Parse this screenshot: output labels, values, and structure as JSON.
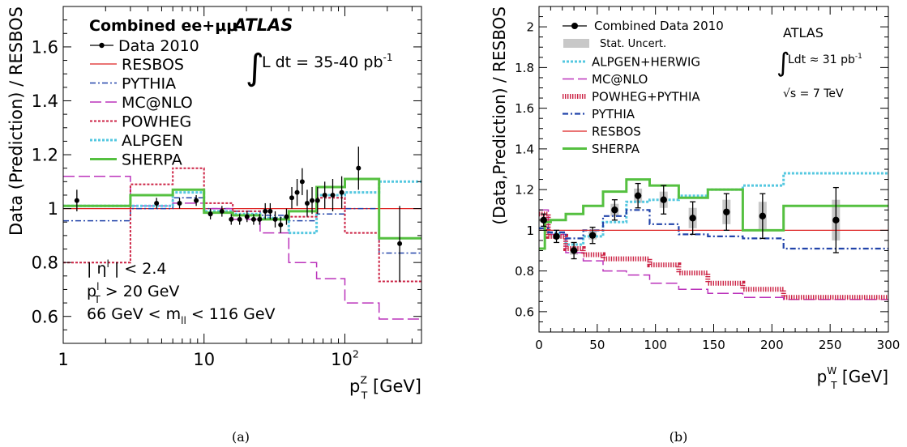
{
  "chart_data": [
    {
      "type": "line",
      "panel_caption": "(a)",
      "xscale": "log",
      "xlim": [
        1,
        350
      ],
      "ylim": [
        0.5,
        1.75
      ],
      "xticks": [
        1,
        10,
        100
      ],
      "xtick_labels": [
        "1",
        "10",
        "10²"
      ],
      "yticks": [
        0.6,
        0.8,
        1.0,
        1.2,
        1.4,
        1.6
      ],
      "ytick_labels": [
        "0.6",
        "0.8",
        "1",
        "1.2",
        "1.4",
        "1.6"
      ],
      "ylabel": "Data (Prediction) / RESBOS",
      "xlabel": "p_T^Z [GeV]",
      "xlabel_main": "p",
      "xlabel_sub": "T",
      "xlabel_sup": "Z",
      "xlabel_unit": " [GeV]",
      "legend_header": "Combined ee+μμ",
      "atlas_label": "ATLAS",
      "lumi": "L dt = 35-40 pb",
      "lumi_sup": "-1",
      "cuts": [
        {
          "main": "| η",
          "sup": "l",
          "sub": "",
          "rest": " | < 2.4"
        },
        {
          "main": "p",
          "sup": "l",
          "sub": "T",
          "rest": " > 20 GeV"
        },
        {
          "main": "66 GeV < m",
          "sup": "",
          "sub": "ll",
          "rest": " < 116 GeV"
        }
      ],
      "legend_placement": "top-left",
      "data": {
        "name": "Data 2010",
        "x": [
          1.25,
          4.6,
          6.7,
          8.8,
          11.1,
          13.4,
          15.6,
          17.9,
          20.2,
          22.5,
          24.8,
          27.2,
          29.5,
          32.0,
          35.0,
          38.5,
          42.0,
          45.8,
          49.8,
          54.0,
          58.5,
          64.0,
          72.0,
          82.0,
          95.0,
          125.0,
          245.0
        ],
        "y": [
          1.03,
          1.02,
          1.02,
          1.03,
          0.98,
          0.99,
          0.96,
          0.96,
          0.97,
          0.96,
          0.96,
          0.99,
          0.99,
          0.96,
          0.94,
          0.97,
          1.04,
          1.06,
          1.1,
          1.02,
          1.03,
          1.03,
          1.05,
          1.05,
          1.06,
          1.15,
          0.87
        ],
        "err": [
          0.04,
          0.02,
          0.02,
          0.02,
          0.02,
          0.02,
          0.02,
          0.02,
          0.02,
          0.02,
          0.02,
          0.03,
          0.03,
          0.03,
          0.03,
          0.03,
          0.04,
          0.05,
          0.05,
          0.05,
          0.05,
          0.05,
          0.05,
          0.06,
          0.06,
          0.08,
          0.14
        ]
      },
      "series": [
        {
          "name": "RESBOS",
          "color": "#dd2222",
          "style": "solid",
          "width": 1.3,
          "edges": [
            1,
            350
          ],
          "values": [
            1.0
          ]
        },
        {
          "name": "PYTHIA",
          "color": "#2244aa",
          "style": "dashdot",
          "width": 1.5,
          "edges": [
            1,
            3,
            6,
            10,
            16,
            25,
            40,
            63,
            100,
            175,
            350
          ],
          "values": [
            0.955,
            1.0,
            1.04,
            1.0,
            0.99,
            0.975,
            0.955,
            0.98,
            1.0,
            0.835
          ]
        },
        {
          "name": "MC@NLO",
          "color": "#bb33bb",
          "style": "longdash",
          "width": 1.5,
          "edges": [
            1,
            3,
            6,
            10,
            16,
            25,
            40,
            63,
            100,
            175,
            350
          ],
          "values": [
            1.12,
            1.01,
            1.02,
            1.0,
            0.96,
            0.91,
            0.8,
            0.74,
            0.65,
            0.59
          ]
        },
        {
          "name": "POWHEG",
          "color": "#cc2244",
          "style": "dotted",
          "width": 2,
          "edges": [
            1,
            3,
            6,
            10,
            16,
            25,
            40,
            63,
            100,
            175,
            350
          ],
          "values": [
            0.8,
            1.09,
            1.15,
            1.02,
            0.99,
            0.965,
            0.97,
            1.04,
            0.91,
            0.73
          ]
        },
        {
          "name": "ALPGEN",
          "color": "#55c8e0",
          "style": "dotted",
          "width": 3,
          "edges": [
            1,
            3,
            6,
            10,
            16,
            25,
            40,
            63,
            100,
            175,
            350
          ],
          "values": [
            1.01,
            1.01,
            1.06,
            0.99,
            0.98,
            0.965,
            0.91,
            1.05,
            1.06,
            1.1
          ]
        },
        {
          "name": "SHERPA",
          "color": "#55c040",
          "style": "solid",
          "width": 3,
          "edges": [
            1,
            3,
            6,
            10,
            16,
            25,
            40,
            63,
            100,
            175,
            350
          ],
          "values": [
            1.01,
            1.05,
            1.07,
            0.985,
            0.975,
            0.96,
            0.99,
            1.08,
            1.11,
            0.89
          ]
        }
      ]
    },
    {
      "type": "line",
      "panel_caption": "(b)",
      "xscale": "linear",
      "xlim": [
        0,
        300
      ],
      "ylim": [
        0.5,
        2.1
      ],
      "xticks": [
        0,
        50,
        100,
        150,
        200,
        250,
        300
      ],
      "xtick_labels": [
        "0",
        "50",
        "100",
        "150",
        "200",
        "250",
        "300"
      ],
      "yticks": [
        0.6,
        0.8,
        1.0,
        1.2,
        1.4,
        1.6,
        1.8,
        2.0
      ],
      "ytick_labels": [
        "0.6",
        "0.8",
        "1",
        "1.2",
        "1.4",
        "1.6",
        "1.8",
        "2"
      ],
      "ylabel": "(Data,Prediction) / RESBOS",
      "xlabel": "p_T^W [GeV]",
      "xlabel_main": "p",
      "xlabel_sub": "T",
      "xlabel_sup": "W",
      "xlabel_unit": " [GeV]",
      "atlas_label": "ATLAS",
      "lumi": "Ldt ≈ 31 pb",
      "lumi_sup": "-1",
      "energy": "√s = 7 TeV",
      "legend_placement": "top-left",
      "data": {
        "name": "Combined Data 2010",
        "x": [
          4,
          15,
          30,
          46,
          65,
          85,
          107,
          132,
          161,
          192,
          255
        ],
        "y": [
          1.05,
          0.97,
          0.9,
          0.975,
          1.1,
          1.17,
          1.15,
          1.06,
          1.09,
          1.07,
          1.05
        ],
        "err": [
          0.03,
          0.03,
          0.04,
          0.04,
          0.05,
          0.06,
          0.07,
          0.08,
          0.09,
          0.11,
          0.16
        ],
        "stat": [
          0.01,
          0.01,
          0.02,
          0.02,
          0.03,
          0.035,
          0.04,
          0.05,
          0.06,
          0.07,
          0.1
        ]
      },
      "stat_label": "Stat. Uncert.",
      "series": [
        {
          "name": "ALPGEN+HERWIG",
          "color": "#55c8e0",
          "style": "dotted",
          "width": 3,
          "edges": [
            0,
            8,
            23,
            38,
            55,
            75,
            95,
            120,
            145,
            175,
            210,
            300
          ],
          "values": [
            1.01,
            0.985,
            0.93,
            0.97,
            1.04,
            1.14,
            1.15,
            1.17,
            1.2,
            1.22,
            1.28
          ]
        },
        {
          "name": "MC@NLO",
          "color": "#bb33bb",
          "style": "longdash",
          "width": 1.5,
          "edges": [
            0,
            8,
            23,
            38,
            55,
            75,
            95,
            120,
            145,
            175,
            210,
            300
          ],
          "values": [
            1.1,
            0.98,
            0.89,
            0.85,
            0.8,
            0.78,
            0.74,
            0.71,
            0.69,
            0.67,
            0.66
          ]
        },
        {
          "name": "POWHEG+PYTHIA",
          "color": "#cc2244",
          "style": "hatched",
          "width": 6,
          "edges": [
            0,
            8,
            23,
            38,
            55,
            75,
            95,
            120,
            145,
            175,
            210,
            300
          ],
          "values": [
            1.08,
            0.97,
            0.91,
            0.88,
            0.86,
            0.86,
            0.83,
            0.79,
            0.74,
            0.71,
            0.67
          ]
        },
        {
          "name": "PYTHIA",
          "color": "#2244aa",
          "style": "dashdot",
          "width": 2.2,
          "edges": [
            0,
            8,
            23,
            38,
            55,
            75,
            95,
            120,
            145,
            175,
            210,
            300
          ],
          "values": [
            1.01,
            0.99,
            0.96,
            1.0,
            1.07,
            1.1,
            1.03,
            0.98,
            0.97,
            0.96,
            0.91
          ]
        },
        {
          "name": "RESBOS",
          "color": "#dd2222",
          "style": "solid",
          "width": 1.3,
          "edges": [
            0,
            300
          ],
          "values": [
            1.0
          ]
        },
        {
          "name": "SHERPA",
          "color": "#55c040",
          "style": "solid",
          "width": 3,
          "edges": [
            0,
            5,
            10,
            23,
            38,
            55,
            75,
            95,
            120,
            145,
            175,
            210,
            300
          ],
          "values": [
            0.91,
            1.04,
            1.05,
            1.08,
            1.12,
            1.19,
            1.25,
            1.22,
            1.16,
            1.2,
            1.0,
            1.12
          ]
        }
      ]
    }
  ]
}
